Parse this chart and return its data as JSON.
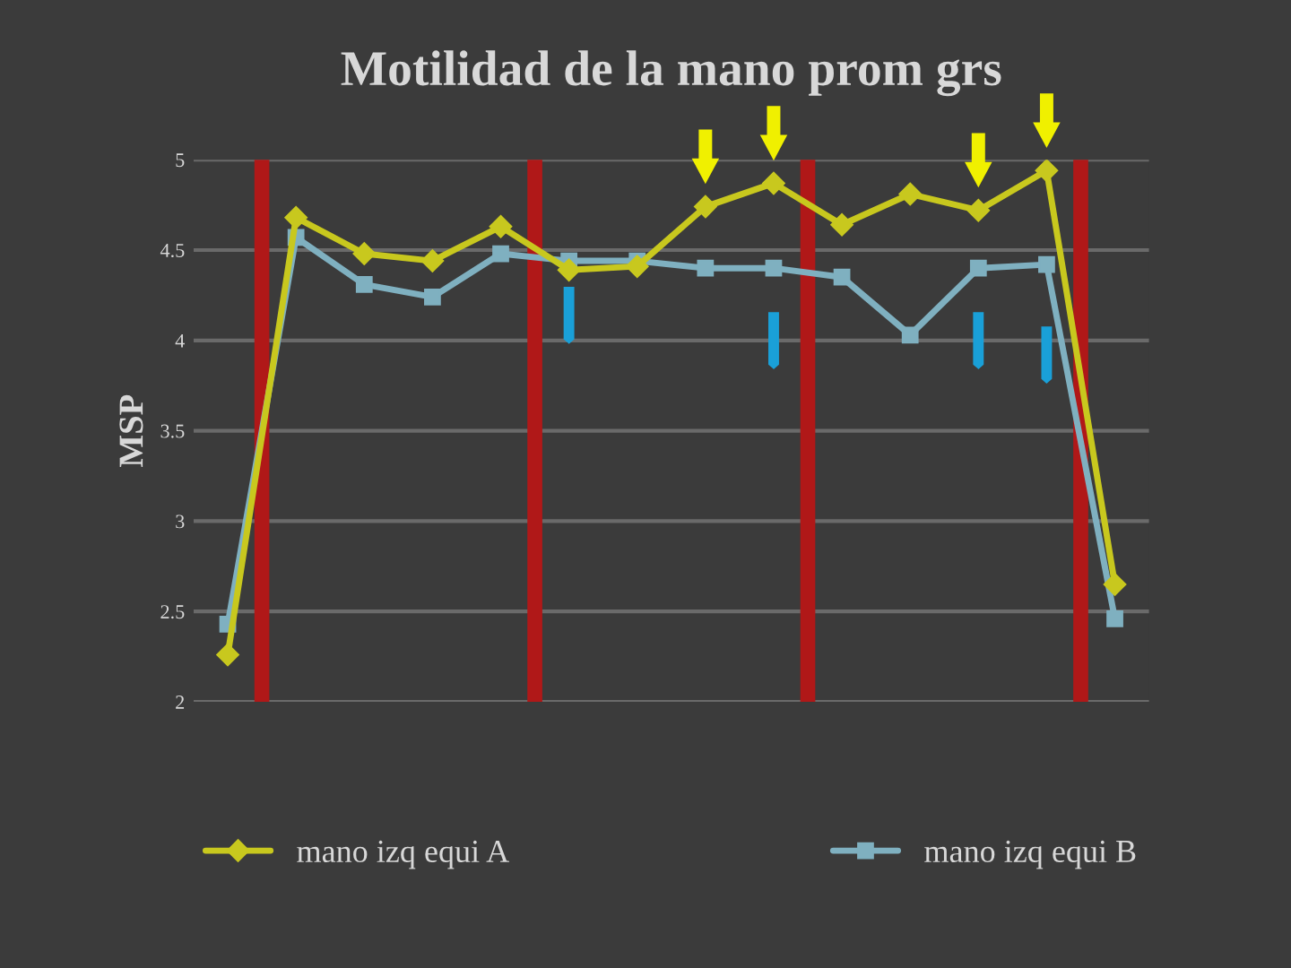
{
  "chart_data": {
    "type": "line",
    "title": "Motilidad de la mano prom grs",
    "ylabel": "MSP",
    "categories": [
      null,
      null,
      null,
      null,
      null,
      null,
      null,
      null,
      null,
      null,
      null,
      null,
      null,
      null
    ],
    "series": [
      {
        "name": "mano izq equi A",
        "color": "#c8c81e",
        "marker": "diamond",
        "values": [
          2.26,
          4.68,
          4.48,
          4.44,
          4.63,
          4.39,
          4.41,
          4.74,
          4.87,
          4.64,
          4.81,
          4.72,
          4.94,
          2.65
        ]
      },
      {
        "name": "mano izq equi B",
        "color": "#7fb0c0",
        "marker": "square",
        "values": [
          2.43,
          4.57,
          4.31,
          4.24,
          4.48,
          4.44,
          4.44,
          4.4,
          4.4,
          4.35,
          4.03,
          4.4,
          4.42,
          2.46
        ]
      }
    ],
    "ylim": [
      2,
      5
    ],
    "yticks": [
      2,
      2.5,
      3,
      3.5,
      4,
      4.5,
      5
    ],
    "grid": "y",
    "legend": "bottom"
  }
}
